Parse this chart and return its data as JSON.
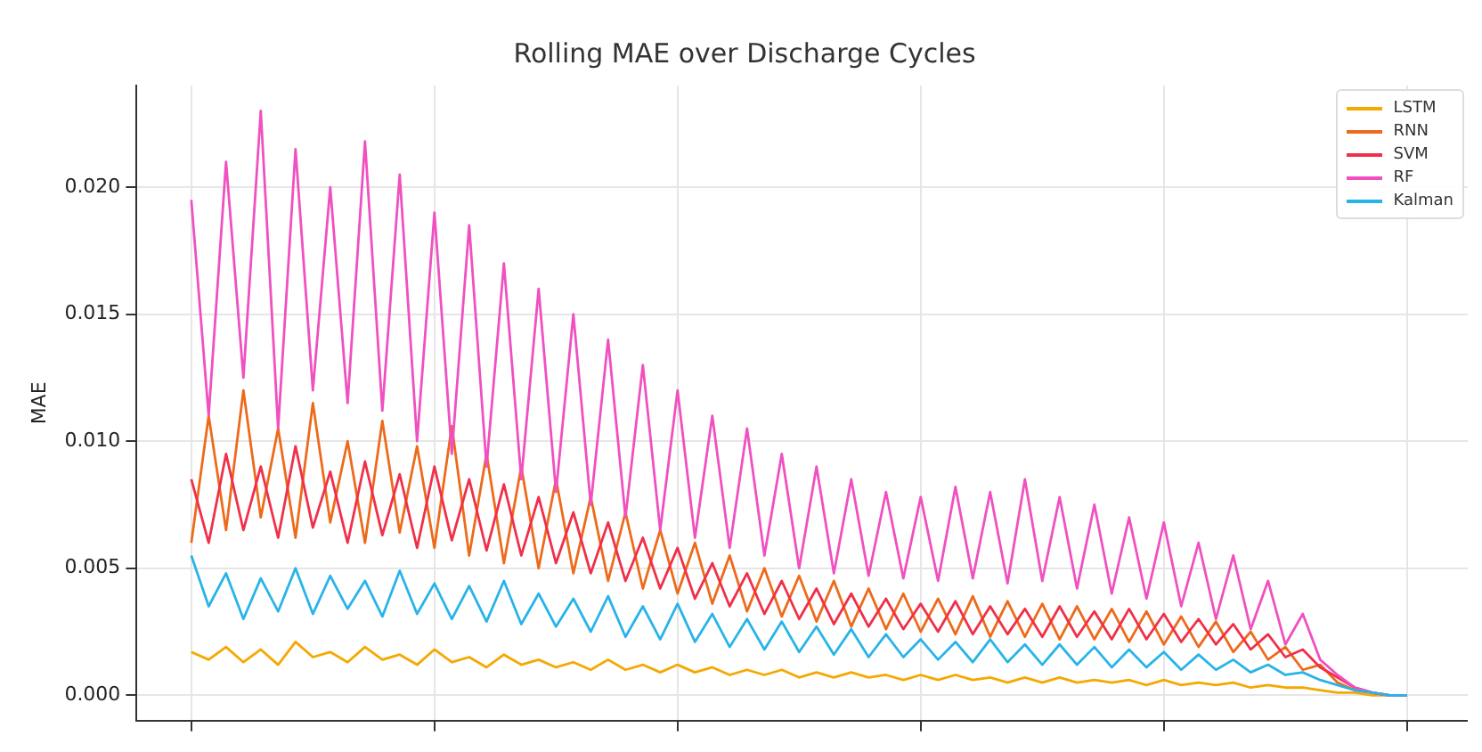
{
  "chart_data": {
    "type": "line",
    "title": "Rolling MAE over Discharge Cycles",
    "ylabel": "MAE",
    "categories": [
      null,
      null,
      null,
      null,
      null,
      null,
      null,
      null,
      null,
      null,
      null,
      null,
      null,
      null,
      null,
      null,
      null,
      null,
      null,
      null,
      null,
      null,
      null,
      null,
      null,
      null,
      null,
      null,
      null,
      null,
      null,
      null,
      null,
      null,
      null,
      null,
      null,
      null,
      null,
      null,
      null,
      null,
      null,
      null,
      null,
      null,
      null,
      null,
      null,
      null,
      null,
      null,
      null,
      null,
      null,
      null,
      null,
      null,
      null,
      null,
      null,
      null,
      null,
      null,
      null,
      null,
      null,
      null,
      null,
      null,
      null
    ],
    "ylim": [
      -0.001,
      0.024
    ],
    "yticks": [
      {
        "value": 0,
        "label": "0.000"
      },
      {
        "value": 0.005,
        "label": "0.005"
      },
      {
        "value": 0.01,
        "label": "0.010"
      },
      {
        "value": 0.015,
        "label": "0.015"
      },
      {
        "value": 0.02,
        "label": "0.020"
      }
    ],
    "grid": true,
    "legend": "top right",
    "tick_labels": "y",
    "series": [
      {
        "name": "LSTM",
        "color": "#f5a800",
        "values": [
          0.0017,
          0.0014,
          0.0019,
          0.0013,
          0.0018,
          0.0012,
          0.0021,
          0.0015,
          0.0017,
          0.0013,
          0.0019,
          0.0014,
          0.0016,
          0.0012,
          0.0018,
          0.0013,
          0.0015,
          0.0011,
          0.0016,
          0.0012,
          0.0014,
          0.0011,
          0.0013,
          0.001,
          0.0014,
          0.001,
          0.0012,
          0.0009,
          0.0012,
          0.0009,
          0.0011,
          0.0008,
          0.001,
          0.0008,
          0.001,
          0.0007,
          0.0009,
          0.0007,
          0.0009,
          0.0007,
          0.0008,
          0.0006,
          0.0008,
          0.0006,
          0.0008,
          0.0006,
          0.0007,
          0.0005,
          0.0007,
          0.0005,
          0.0007,
          0.0005,
          0.0006,
          0.0005,
          0.0006,
          0.0004,
          0.0006,
          0.0004,
          0.0005,
          0.0004,
          0.0005,
          0.0003,
          0.0004,
          0.0003,
          0.0003,
          0.0002,
          0.0001,
          0.0001,
          0,
          0,
          0
        ]
      },
      {
        "name": "RNN",
        "color": "#ee6a1b",
        "values": [
          0.006,
          0.011,
          0.0065,
          0.012,
          0.007,
          0.0105,
          0.0062,
          0.0115,
          0.0068,
          0.01,
          0.006,
          0.0108,
          0.0064,
          0.0098,
          0.0058,
          0.0106,
          0.0055,
          0.0095,
          0.0052,
          0.009,
          0.005,
          0.0085,
          0.0048,
          0.0078,
          0.0045,
          0.0072,
          0.0042,
          0.0065,
          0.004,
          0.006,
          0.0036,
          0.0055,
          0.0033,
          0.005,
          0.0031,
          0.0047,
          0.0029,
          0.0045,
          0.0027,
          0.0042,
          0.0026,
          0.004,
          0.0025,
          0.0038,
          0.0024,
          0.0039,
          0.0023,
          0.0037,
          0.0023,
          0.0036,
          0.0022,
          0.0035,
          0.0022,
          0.0034,
          0.0021,
          0.0033,
          0.002,
          0.0031,
          0.0019,
          0.0029,
          0.0017,
          0.0025,
          0.0014,
          0.0019,
          0.001,
          0.0012,
          0.0005,
          0.0002,
          0.0001,
          0,
          0
        ]
      },
      {
        "name": "SVM",
        "color": "#f0304a",
        "values": [
          0.0085,
          0.006,
          0.0095,
          0.0065,
          0.009,
          0.0062,
          0.0098,
          0.0066,
          0.0088,
          0.006,
          0.0092,
          0.0063,
          0.0087,
          0.0058,
          0.009,
          0.0061,
          0.0085,
          0.0057,
          0.0083,
          0.0055,
          0.0078,
          0.0052,
          0.0072,
          0.0048,
          0.0068,
          0.0045,
          0.0062,
          0.0042,
          0.0058,
          0.0038,
          0.0052,
          0.0035,
          0.0048,
          0.0032,
          0.0045,
          0.003,
          0.0042,
          0.0028,
          0.004,
          0.0027,
          0.0038,
          0.0026,
          0.0036,
          0.0025,
          0.0037,
          0.0024,
          0.0035,
          0.0024,
          0.0034,
          0.0023,
          0.0035,
          0.0023,
          0.0033,
          0.0022,
          0.0034,
          0.0022,
          0.0032,
          0.0021,
          0.003,
          0.002,
          0.0028,
          0.0018,
          0.0024,
          0.0015,
          0.0018,
          0.0011,
          0.0007,
          0.0003,
          0.0001,
          0,
          0
        ]
      },
      {
        "name": "RF",
        "color": "#f050c0",
        "values": [
          0.0195,
          0.011,
          0.021,
          0.0125,
          0.023,
          0.0105,
          0.0215,
          0.012,
          0.02,
          0.0115,
          0.0218,
          0.0112,
          0.0205,
          0.01,
          0.019,
          0.0095,
          0.0185,
          0.009,
          0.017,
          0.0085,
          0.016,
          0.008,
          0.015,
          0.0075,
          0.014,
          0.007,
          0.013,
          0.0065,
          0.012,
          0.0062,
          0.011,
          0.0058,
          0.0105,
          0.0055,
          0.0095,
          0.005,
          0.009,
          0.0048,
          0.0085,
          0.0047,
          0.008,
          0.0046,
          0.0078,
          0.0045,
          0.0082,
          0.0046,
          0.008,
          0.0044,
          0.0085,
          0.0045,
          0.0078,
          0.0042,
          0.0075,
          0.004,
          0.007,
          0.0038,
          0.0068,
          0.0035,
          0.006,
          0.003,
          0.0055,
          0.0026,
          0.0045,
          0.002,
          0.0032,
          0.0014,
          0.0008,
          0.0003,
          0.0001,
          0,
          0
        ]
      },
      {
        "name": "Kalman",
        "color": "#28b4e8",
        "values": [
          0.0055,
          0.0035,
          0.0048,
          0.003,
          0.0046,
          0.0033,
          0.005,
          0.0032,
          0.0047,
          0.0034,
          0.0045,
          0.0031,
          0.0049,
          0.0032,
          0.0044,
          0.003,
          0.0043,
          0.0029,
          0.0045,
          0.0028,
          0.004,
          0.0027,
          0.0038,
          0.0025,
          0.0039,
          0.0023,
          0.0035,
          0.0022,
          0.0036,
          0.0021,
          0.0032,
          0.0019,
          0.003,
          0.0018,
          0.0029,
          0.0017,
          0.0027,
          0.0016,
          0.0026,
          0.0015,
          0.0024,
          0.0015,
          0.0022,
          0.0014,
          0.0021,
          0.0013,
          0.0022,
          0.0013,
          0.002,
          0.0012,
          0.002,
          0.0012,
          0.0019,
          0.0011,
          0.0018,
          0.0011,
          0.0017,
          0.001,
          0.0016,
          0.001,
          0.0014,
          0.0009,
          0.0012,
          0.0008,
          0.0009,
          0.0006,
          0.0004,
          0.0002,
          0.0001,
          0,
          0
        ]
      }
    ]
  }
}
